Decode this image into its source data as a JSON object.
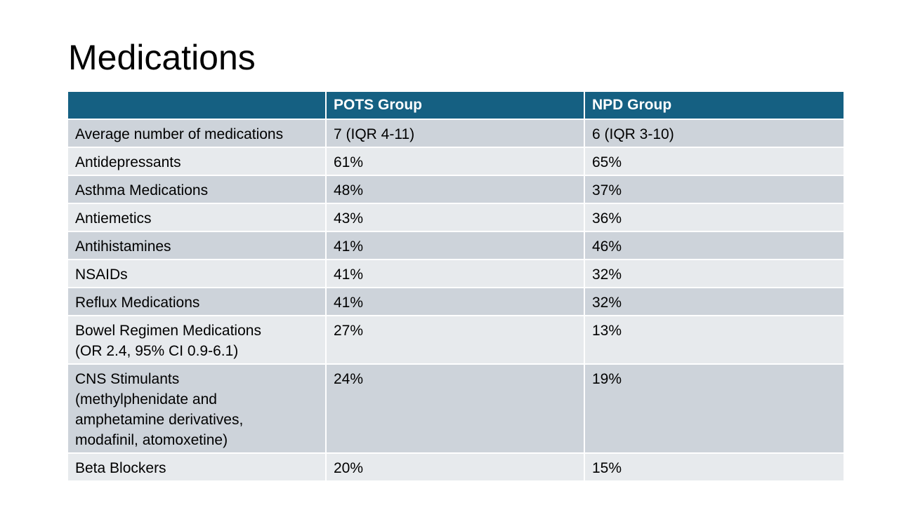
{
  "slide": {
    "title": "Medications"
  },
  "table": {
    "headers": [
      "",
      "POTS Group",
      "NPD Group"
    ],
    "rows": [
      [
        "Average number of medications",
        "7 (IQR 4-11)",
        "6 (IQR 3-10)"
      ],
      [
        "Antidepressants",
        "61%",
        "65%"
      ],
      [
        "Asthma Medications",
        "48%",
        "37%"
      ],
      [
        "Antiemetics",
        "43%",
        "36%"
      ],
      [
        "Antihistamines",
        "41%",
        "46%"
      ],
      [
        "NSAIDs",
        "41%",
        "32%"
      ],
      [
        "Reflux Medications",
        "41%",
        "32%"
      ],
      [
        "Bowel Regimen Medications\n(OR 2.4, 95% CI 0.9-6.1)",
        "27%",
        "13%"
      ],
      [
        "CNS Stimulants\n(methylphenidate and\namphetamine derivatives,\nmodafinil, atomoxetine)",
        "24%",
        "19%"
      ],
      [
        "Beta Blockers",
        "20%",
        "15%"
      ]
    ]
  },
  "colors": {
    "header_bg": "#156082",
    "header_text": "#ffffff",
    "row_dark": "#cdd3da",
    "row_light": "#e7eaed"
  }
}
